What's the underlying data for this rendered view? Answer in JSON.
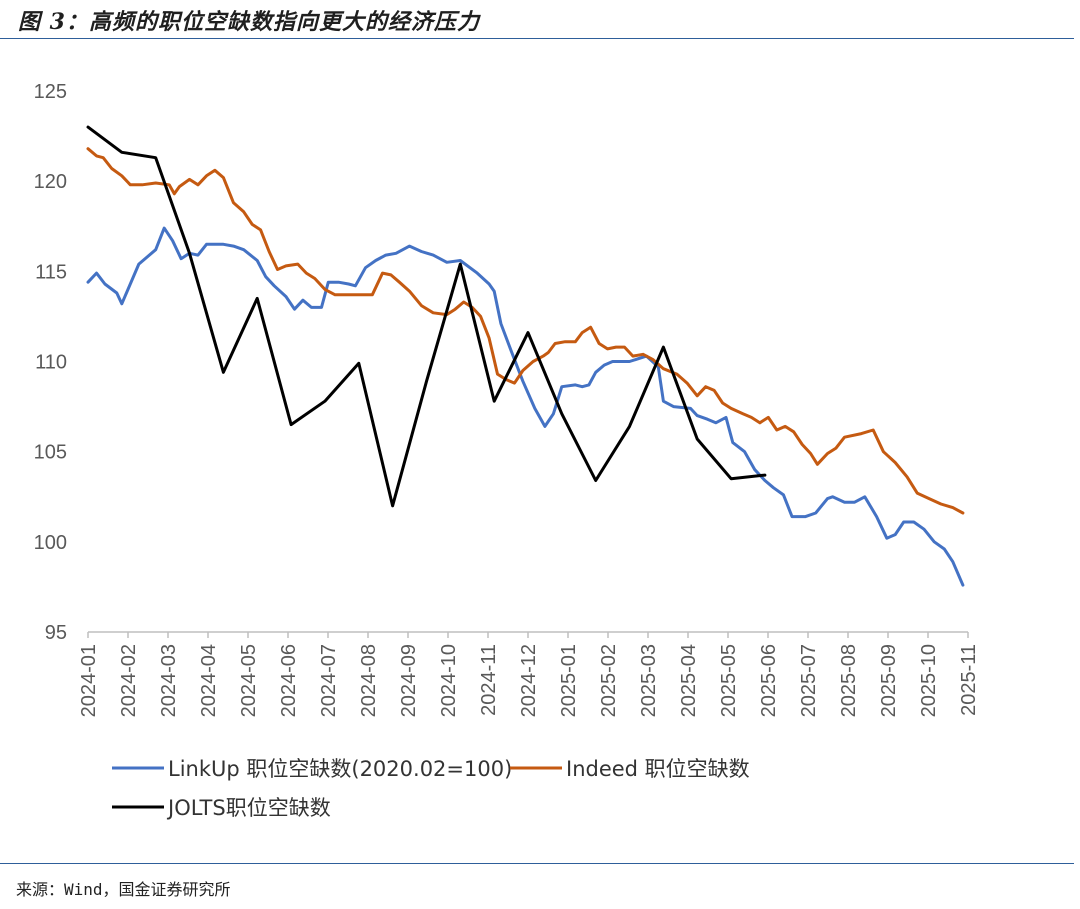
{
  "title": "图 3：高频的职位空缺数指向更大的经济压力",
  "source": "来源：Wind，国金证券研究所",
  "chart_data": {
    "type": "line",
    "ylim": [
      95,
      125
    ],
    "yticks": [
      95,
      100,
      105,
      110,
      115,
      120,
      125
    ],
    "categories": [
      "2024-01",
      "2024-02",
      "2024-03",
      "2024-04",
      "2024-05",
      "2024-06",
      "2024-07",
      "2024-08",
      "2024-09",
      "2024-10",
      "2024-11",
      "2024-12",
      "2025-01",
      "2025-02",
      "2025-03",
      "2025-04",
      "2025-05",
      "2025-06",
      "2025-07",
      "2025-08",
      "2025-09",
      "2025-10",
      "2025-11"
    ],
    "series": [
      {
        "name": "LinkUp 职位空缺数(2020.02=100)",
        "color": "#4472c4",
        "points": [
          [
            0,
            114.4
          ],
          [
            0.25,
            114.9
          ],
          [
            0.5,
            114.3
          ],
          [
            0.85,
            113.8
          ],
          [
            1.0,
            113.2
          ],
          [
            1.5,
            115.4
          ],
          [
            2.0,
            116.2
          ],
          [
            2.25,
            117.4
          ],
          [
            2.5,
            116.7
          ],
          [
            2.75,
            115.7
          ],
          [
            3.0,
            116.0
          ],
          [
            3.25,
            115.9
          ],
          [
            3.5,
            116.5
          ],
          [
            4.0,
            116.5
          ],
          [
            4.3,
            116.4
          ],
          [
            4.6,
            116.2
          ],
          [
            5.0,
            115.6
          ],
          [
            5.25,
            114.7
          ],
          [
            5.5,
            114.2
          ],
          [
            5.85,
            113.6
          ],
          [
            6.1,
            112.9
          ],
          [
            6.35,
            113.4
          ],
          [
            6.6,
            113.0
          ],
          [
            6.9,
            113.0
          ],
          [
            7.1,
            114.4
          ],
          [
            7.4,
            114.4
          ],
          [
            7.7,
            114.3
          ],
          [
            7.9,
            114.2
          ],
          [
            8.2,
            115.2
          ],
          [
            8.5,
            115.6
          ],
          [
            8.8,
            115.9
          ],
          [
            9.1,
            116.0
          ],
          [
            9.5,
            116.4
          ],
          [
            9.85,
            116.1
          ],
          [
            10.2,
            115.9
          ],
          [
            10.6,
            115.5
          ],
          [
            11.0,
            115.6
          ],
          [
            11.5,
            114.9
          ],
          [
            11.85,
            114.3
          ],
          [
            12.0,
            113.9
          ],
          [
            12.2,
            112.1
          ],
          [
            12.5,
            110.6
          ],
          [
            12.85,
            108.9
          ],
          [
            13.2,
            107.4
          ],
          [
            13.5,
            106.4
          ],
          [
            13.75,
            107.1
          ],
          [
            14.0,
            108.6
          ],
          [
            14.4,
            108.7
          ],
          [
            14.6,
            108.6
          ],
          [
            14.8,
            108.7
          ],
          [
            15.0,
            109.4
          ],
          [
            15.25,
            109.8
          ],
          [
            15.5,
            110.0
          ],
          [
            16.0,
            110.0
          ],
          [
            16.5,
            110.3
          ],
          [
            16.85,
            109.7
          ],
          [
            17.0,
            107.8
          ],
          [
            17.3,
            107.5
          ],
          [
            17.8,
            107.4
          ],
          [
            18.0,
            107.0
          ],
          [
            18.3,
            106.8
          ],
          [
            18.55,
            106.6
          ],
          [
            18.85,
            106.9
          ],
          [
            19.05,
            105.5
          ],
          [
            19.4,
            105.0
          ],
          [
            19.7,
            104.0
          ],
          [
            20.0,
            103.4
          ],
          [
            20.25,
            103.0
          ],
          [
            20.55,
            102.6
          ],
          [
            20.8,
            101.4
          ],
          [
            21.2,
            101.4
          ],
          [
            21.5,
            101.6
          ],
          [
            21.85,
            102.4
          ],
          [
            22.0,
            102.5
          ],
          [
            22.35,
            102.2
          ],
          [
            22.65,
            102.2
          ],
          [
            22.95,
            102.5
          ],
          [
            23.3,
            101.4
          ],
          [
            23.6,
            100.2
          ],
          [
            23.85,
            100.4
          ],
          [
            24.1,
            101.1
          ],
          [
            24.4,
            101.1
          ],
          [
            24.7,
            100.7
          ],
          [
            25.0,
            100.0
          ],
          [
            25.3,
            99.6
          ],
          [
            25.55,
            98.9
          ],
          [
            25.85,
            97.6
          ]
        ]
      },
      {
        "name": "Indeed 职位空缺数",
        "color": "#c55a11",
        "points": [
          [
            0,
            121.8
          ],
          [
            0.25,
            121.4
          ],
          [
            0.45,
            121.3
          ],
          [
            0.7,
            120.7
          ],
          [
            1.0,
            120.3
          ],
          [
            1.25,
            119.8
          ],
          [
            1.6,
            119.8
          ],
          [
            2.0,
            119.9
          ],
          [
            2.4,
            119.8
          ],
          [
            2.55,
            119.3
          ],
          [
            2.7,
            119.7
          ],
          [
            3.0,
            120.1
          ],
          [
            3.25,
            119.8
          ],
          [
            3.5,
            120.3
          ],
          [
            3.75,
            120.6
          ],
          [
            4.0,
            120.2
          ],
          [
            4.3,
            118.8
          ],
          [
            4.6,
            118.3
          ],
          [
            4.85,
            117.6
          ],
          [
            5.1,
            117.3
          ],
          [
            5.35,
            116.1
          ],
          [
            5.6,
            115.1
          ],
          [
            5.85,
            115.3
          ],
          [
            6.2,
            115.4
          ],
          [
            6.45,
            114.9
          ],
          [
            6.7,
            114.6
          ],
          [
            7.0,
            114.0
          ],
          [
            7.3,
            113.7
          ],
          [
            7.6,
            113.7
          ],
          [
            8.0,
            113.7
          ],
          [
            8.4,
            113.7
          ],
          [
            8.7,
            114.9
          ],
          [
            8.95,
            114.8
          ],
          [
            9.2,
            114.4
          ],
          [
            9.5,
            113.9
          ],
          [
            9.85,
            113.1
          ],
          [
            10.2,
            112.7
          ],
          [
            10.6,
            112.6
          ],
          [
            10.85,
            112.9
          ],
          [
            11.1,
            113.3
          ],
          [
            11.35,
            113.0
          ],
          [
            11.6,
            112.5
          ],
          [
            11.85,
            111.3
          ],
          [
            12.1,
            109.3
          ],
          [
            12.35,
            109.0
          ],
          [
            12.6,
            108.8
          ],
          [
            12.85,
            109.5
          ],
          [
            13.15,
            110.0
          ],
          [
            13.45,
            110.3
          ],
          [
            13.6,
            110.5
          ],
          [
            13.8,
            111.0
          ],
          [
            14.1,
            111.1
          ],
          [
            14.4,
            111.1
          ],
          [
            14.6,
            111.6
          ],
          [
            14.85,
            111.9
          ],
          [
            15.1,
            111.0
          ],
          [
            15.35,
            110.7
          ],
          [
            15.6,
            110.8
          ],
          [
            15.85,
            110.8
          ],
          [
            16.1,
            110.3
          ],
          [
            16.4,
            110.4
          ],
          [
            16.7,
            110.1
          ],
          [
            17.0,
            109.6
          ],
          [
            17.4,
            109.3
          ],
          [
            17.7,
            108.8
          ],
          [
            18.0,
            108.1
          ],
          [
            18.25,
            108.6
          ],
          [
            18.5,
            108.4
          ],
          [
            18.75,
            107.7
          ],
          [
            19.0,
            107.4
          ],
          [
            19.35,
            107.1
          ],
          [
            19.6,
            106.9
          ],
          [
            19.85,
            106.6
          ],
          [
            20.1,
            106.9
          ],
          [
            20.35,
            106.2
          ],
          [
            20.6,
            106.4
          ],
          [
            20.85,
            106.1
          ],
          [
            21.1,
            105.4
          ],
          [
            21.35,
            104.9
          ],
          [
            21.55,
            104.3
          ],
          [
            21.85,
            104.9
          ],
          [
            22.1,
            105.2
          ],
          [
            22.35,
            105.8
          ],
          [
            22.85,
            106.0
          ],
          [
            23.2,
            106.2
          ],
          [
            23.5,
            105.0
          ],
          [
            23.85,
            104.4
          ],
          [
            24.2,
            103.6
          ],
          [
            24.5,
            102.7
          ],
          [
            24.85,
            102.4
          ],
          [
            25.2,
            102.1
          ],
          [
            25.55,
            101.9
          ],
          [
            25.85,
            101.6
          ]
        ]
      },
      {
        "name": "JOLTS职位空缺数",
        "color": "#000000",
        "points": [
          [
            0,
            123.0
          ],
          [
            1.0,
            121.6
          ],
          [
            2.0,
            121.3
          ],
          [
            3.0,
            116.0
          ],
          [
            4.0,
            109.4
          ],
          [
            5.0,
            113.5
          ],
          [
            6.0,
            106.5
          ],
          [
            7.0,
            107.8
          ],
          [
            8.0,
            109.9
          ],
          [
            9.0,
            102.0
          ],
          [
            10.0,
            108.9
          ],
          [
            11.0,
            115.4
          ],
          [
            12.0,
            107.8
          ],
          [
            13.0,
            111.6
          ],
          [
            14.0,
            107.1
          ],
          [
            15.0,
            103.4
          ],
          [
            16.0,
            106.4
          ],
          [
            17.0,
            110.8
          ],
          [
            18.0,
            105.7
          ],
          [
            19.0,
            103.5
          ],
          [
            20.0,
            103.7
          ]
        ]
      }
    ]
  }
}
